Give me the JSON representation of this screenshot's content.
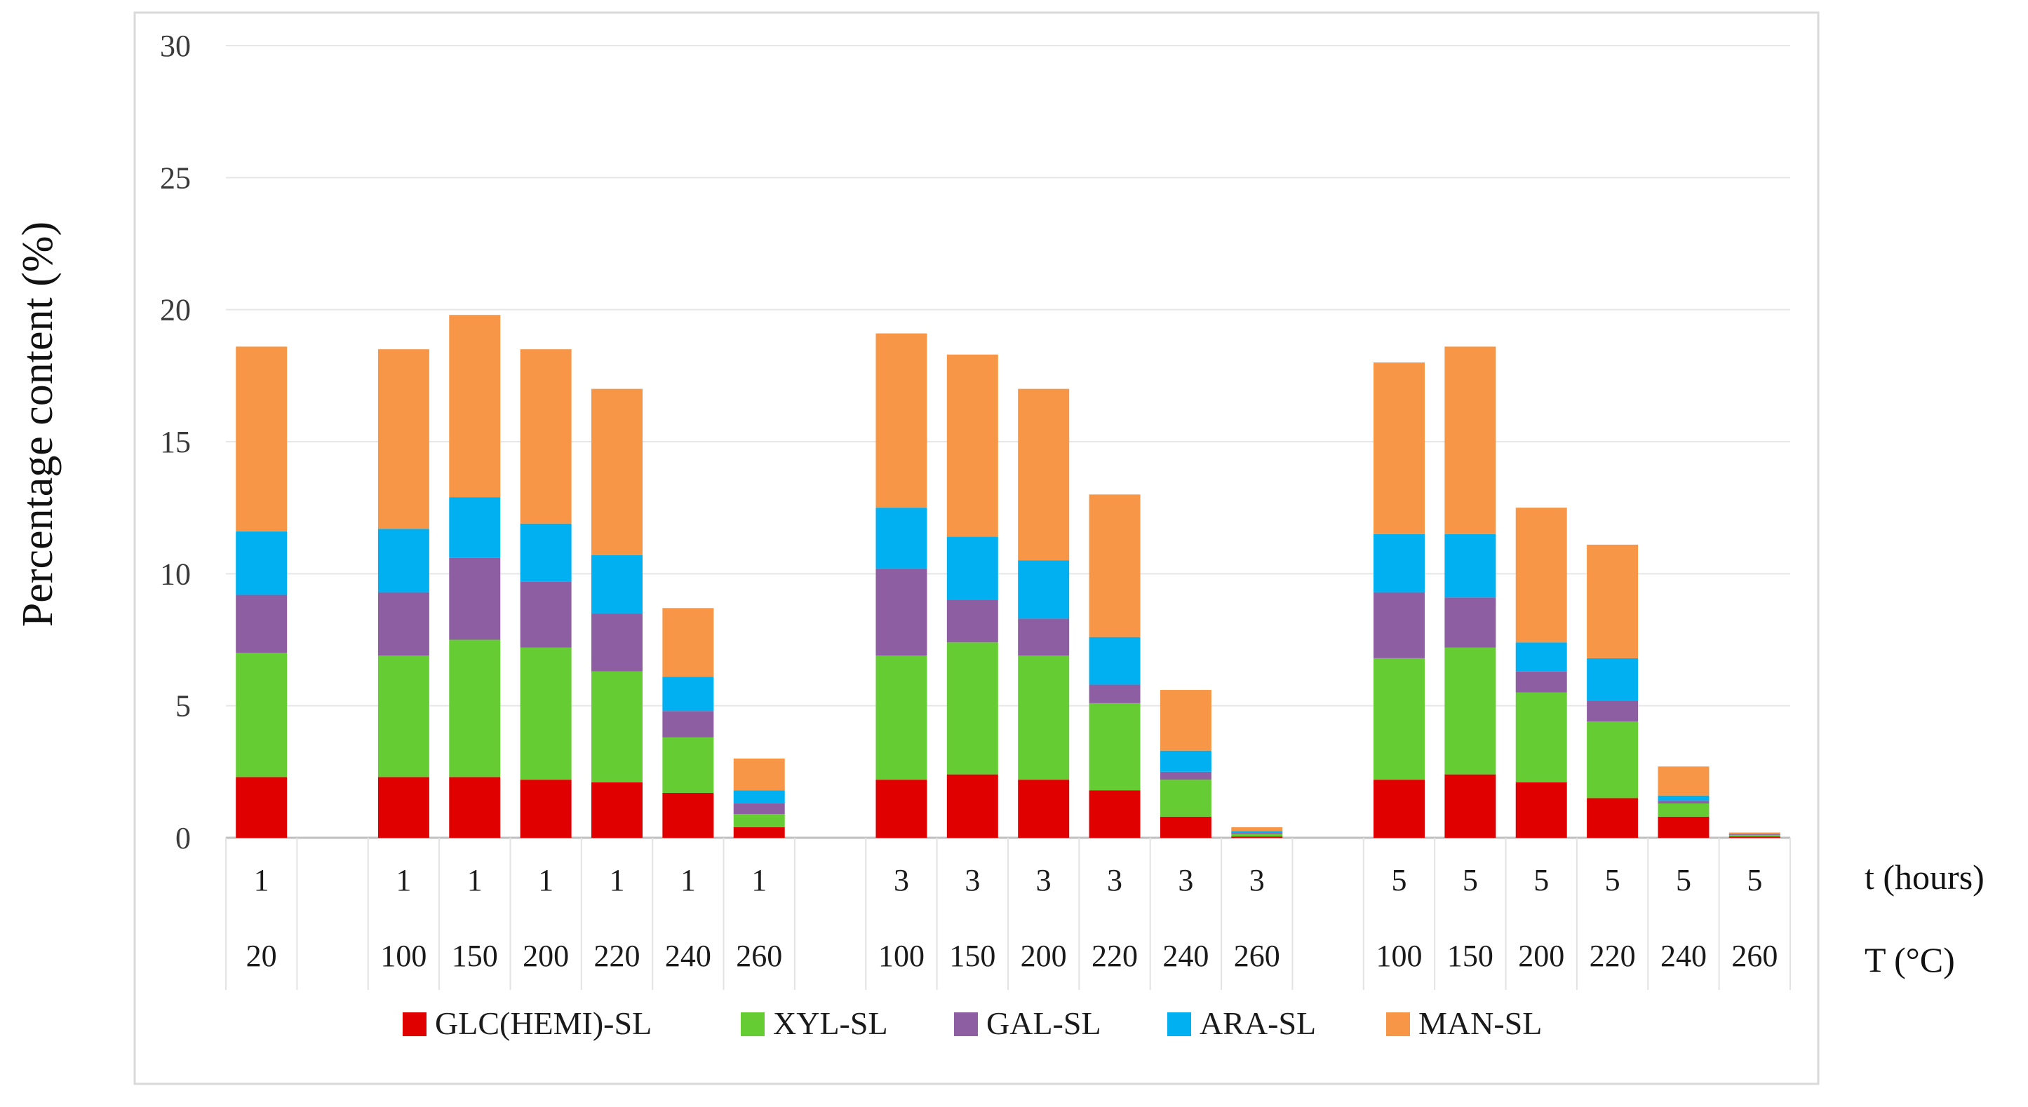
{
  "chart_data": {
    "type": "bar",
    "stacked": true,
    "title": "",
    "xlabel": "",
    "ylabel": "Percentage content (%)",
    "ylim": [
      0,
      30
    ],
    "yticks": [
      0,
      5,
      10,
      15,
      20,
      25,
      30
    ],
    "grid": true,
    "legend_position": "bottom",
    "row_labels": {
      "t": "t (hours)",
      "T": "T (°C)"
    },
    "group_gap_after": [
      0,
      6,
      12
    ],
    "categories": [
      {
        "t": "1",
        "T": "20"
      },
      {
        "t": "1",
        "T": "100"
      },
      {
        "t": "1",
        "T": "150"
      },
      {
        "t": "1",
        "T": "200"
      },
      {
        "t": "1",
        "T": "220"
      },
      {
        "t": "1",
        "T": "240"
      },
      {
        "t": "1",
        "T": "260"
      },
      {
        "t": "3",
        "T": "100"
      },
      {
        "t": "3",
        "T": "150"
      },
      {
        "t": "3",
        "T": "200"
      },
      {
        "t": "3",
        "T": "220"
      },
      {
        "t": "3",
        "T": "240"
      },
      {
        "t": "3",
        "T": "260"
      },
      {
        "t": "5",
        "T": "100"
      },
      {
        "t": "5",
        "T": "150"
      },
      {
        "t": "5",
        "T": "200"
      },
      {
        "t": "5",
        "T": "220"
      },
      {
        "t": "5",
        "T": "240"
      },
      {
        "t": "5",
        "T": "260"
      }
    ],
    "series": [
      {
        "name": "GLC(HEMI)-SL",
        "color": "#e00000",
        "values": [
          2.3,
          2.3,
          2.3,
          2.2,
          2.1,
          1.7,
          0.4,
          2.2,
          2.4,
          2.2,
          1.8,
          0.8,
          0.05,
          2.2,
          2.4,
          2.1,
          1.5,
          0.8,
          0.05
        ]
      },
      {
        "name": "XYL-SL",
        "color": "#66cc33",
        "values": [
          4.7,
          4.6,
          5.2,
          5.0,
          4.2,
          2.1,
          0.5,
          4.7,
          5.0,
          4.7,
          3.3,
          1.4,
          0.1,
          4.6,
          4.8,
          3.4,
          2.9,
          0.5,
          0.05
        ]
      },
      {
        "name": "GAL-SL",
        "color": "#8e5ea2",
        "values": [
          2.2,
          2.4,
          3.1,
          2.5,
          2.2,
          1.0,
          0.4,
          3.3,
          1.6,
          1.4,
          0.7,
          0.3,
          0.05,
          2.5,
          1.9,
          0.8,
          0.8,
          0.1,
          0.03
        ]
      },
      {
        "name": "ARA-SL",
        "color": "#00b0f0",
        "values": [
          2.4,
          2.4,
          2.3,
          2.2,
          2.2,
          1.3,
          0.5,
          2.3,
          2.4,
          2.2,
          1.8,
          0.8,
          0.05,
          2.2,
          2.4,
          1.1,
          1.6,
          0.2,
          0.02
        ]
      },
      {
        "name": "MAN-SL",
        "color": "#f79646",
        "values": [
          7.0,
          6.8,
          6.9,
          6.6,
          6.3,
          2.6,
          1.2,
          6.6,
          6.9,
          6.5,
          5.4,
          2.3,
          0.15,
          6.5,
          7.1,
          5.1,
          4.3,
          1.1,
          0.05
        ]
      }
    ]
  }
}
